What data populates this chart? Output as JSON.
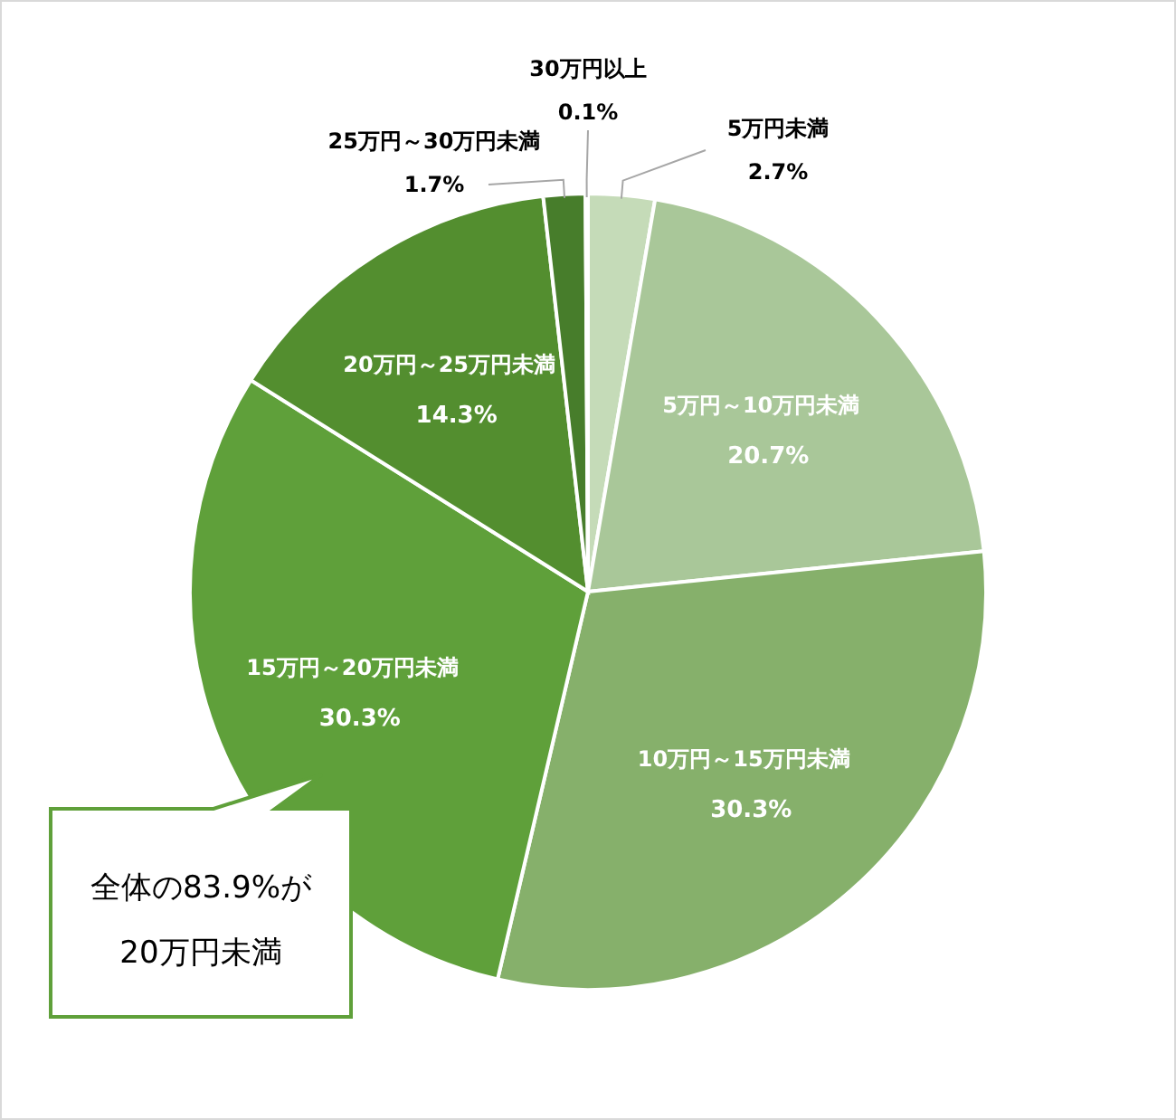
{
  "chart_data": {
    "type": "pie",
    "categories": [
      "5万円未満",
      "5万円～10万円未満",
      "10万円～15万円未満",
      "15万円～20万円未満",
      "20万円～25万円未満",
      "25万円～30万円未満",
      "30万円以上"
    ],
    "values": [
      2.7,
      20.7,
      30.3,
      30.3,
      14.3,
      1.7,
      0.1
    ],
    "value_labels": [
      "2.7%",
      "20.7%",
      "30.3%",
      "30.3%",
      "14.3%",
      "1.7%",
      "0.1%"
    ],
    "colors": [
      "#c5dbb8",
      "#a9c799",
      "#86b06b",
      "#5fa03a",
      "#538e2f",
      "#477d2b",
      "#3f6e25"
    ],
    "annotations": [
      "全体の83.9%が\n20万円未満"
    ]
  }
}
